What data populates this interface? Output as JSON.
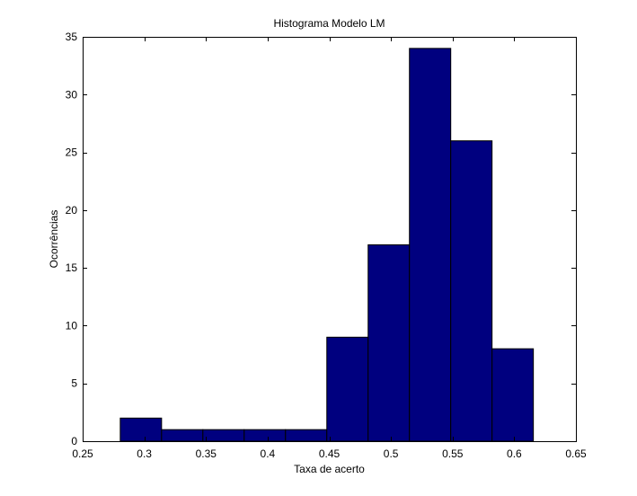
{
  "chart_data": {
    "type": "bar",
    "title": "Histograma Modelo LM",
    "xlabel": "Taxa de acerto",
    "ylabel": "Ocorrências",
    "xlim": [
      0.25,
      0.65
    ],
    "ylim": [
      0,
      35
    ],
    "xticks": [
      "0.25",
      "0.3",
      "0.35",
      "0.4",
      "0.45",
      "0.5",
      "0.55",
      "0.6",
      "0.65"
    ],
    "yticks": [
      "0",
      "5",
      "10",
      "15",
      "20",
      "25",
      "30",
      "35"
    ],
    "bins": [
      {
        "start": 0.2805,
        "end": 0.314,
        "count": 2
      },
      {
        "start": 0.314,
        "end": 0.3475,
        "count": 1
      },
      {
        "start": 0.3475,
        "end": 0.381,
        "count": 1
      },
      {
        "start": 0.381,
        "end": 0.4145,
        "count": 1
      },
      {
        "start": 0.4145,
        "end": 0.448,
        "count": 1
      },
      {
        "start": 0.448,
        "end": 0.4815,
        "count": 9
      },
      {
        "start": 0.4815,
        "end": 0.515,
        "count": 17
      },
      {
        "start": 0.515,
        "end": 0.5485,
        "count": 34
      },
      {
        "start": 0.5485,
        "end": 0.582,
        "count": 26
      },
      {
        "start": 0.582,
        "end": 0.6155,
        "count": 8
      }
    ],
    "grid": false,
    "bar_color": "#00007f"
  }
}
